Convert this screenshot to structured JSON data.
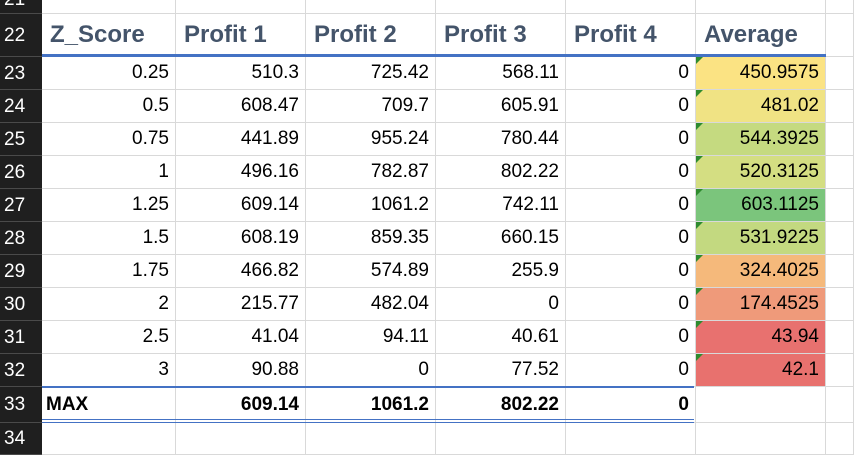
{
  "sheet": {
    "row_numbers": [
      "21",
      "22",
      "23",
      "24",
      "25",
      "26",
      "27",
      "28",
      "29",
      "30",
      "31",
      "32",
      "33",
      "34"
    ],
    "headers": [
      "Z_Score",
      "Profit 1",
      "Profit 2",
      "Profit 3",
      "Profit 4",
      "Average"
    ],
    "rows": [
      [
        "0.25",
        "510.3",
        "725.42",
        "568.11",
        "0",
        "450.9575"
      ],
      [
        "0.5",
        "608.47",
        "709.7",
        "605.91",
        "0",
        "481.02"
      ],
      [
        "0.75",
        "441.89",
        "955.24",
        "780.44",
        "0",
        "544.3925"
      ],
      [
        "1",
        "496.16",
        "782.87",
        "802.22",
        "0",
        "520.3125"
      ],
      [
        "1.25",
        "609.14",
        "1061.2",
        "742.11",
        "0",
        "603.1125"
      ],
      [
        "1.5",
        "608.19",
        "859.35",
        "660.15",
        "0",
        "531.9225"
      ],
      [
        "1.75",
        "466.82",
        "574.89",
        "255.9",
        "0",
        "324.4025"
      ],
      [
        "2",
        "215.77",
        "482.04",
        "0",
        "0",
        "174.4525"
      ],
      [
        "2.5",
        "41.04",
        "94.11",
        "40.61",
        "0",
        "43.94"
      ],
      [
        "3",
        "90.88",
        "0",
        "77.52",
        "0",
        "42.1"
      ]
    ],
    "average_fill_colors": [
      "#fbe383",
      "#f0e384",
      "#c5da80",
      "#d4de82",
      "#7bc57c",
      "#c3d980",
      "#f5b97b",
      "#ef9a7a",
      "#e8716f",
      "#e8716e"
    ],
    "max_row": [
      "MAX",
      "609.14",
      "1061.2",
      "802.22",
      "0"
    ],
    "header_rule_color": "#4472c4",
    "error_indicator_color": "#2e8b2e"
  }
}
